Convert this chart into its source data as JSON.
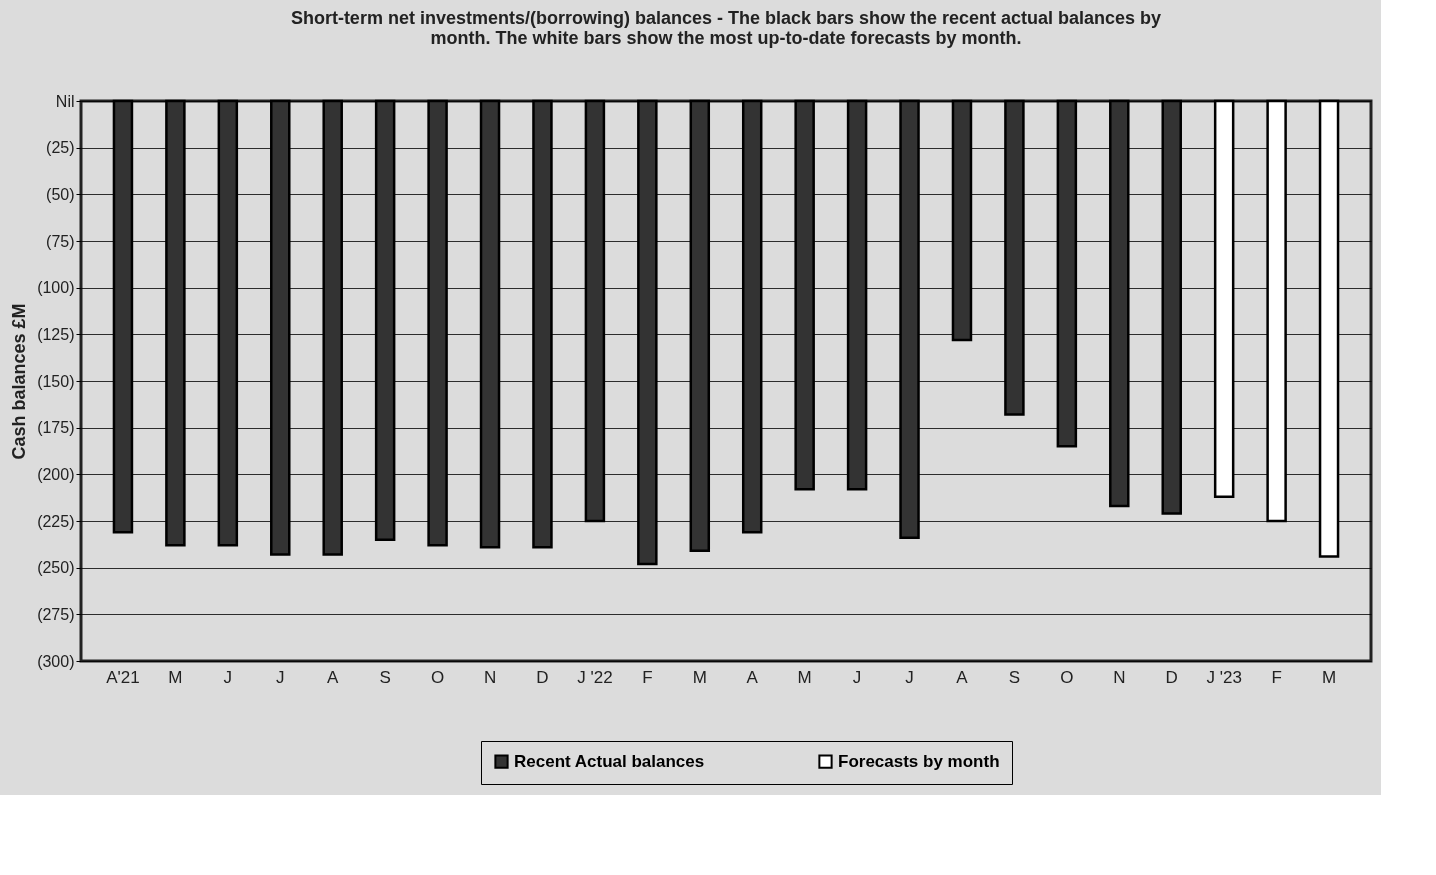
{
  "chart_data": {
    "type": "bar",
    "title": [
      "Short-term net investments/(borrowing) balances - The black bars show the recent actual balances by",
      "month. The white bars show the most up-to-date forecasts by month."
    ],
    "ylabel": "Cash balances £M",
    "categories": [
      "A'21",
      "M",
      "J",
      "J",
      "A",
      "S",
      "O",
      "N",
      "D",
      "J '22",
      "F",
      "M",
      "A",
      "M",
      "J",
      "J",
      "A",
      "S",
      "O",
      "N",
      "D",
      "J '23",
      "F",
      "M"
    ],
    "series": [
      {
        "name": "Recent Actual balances",
        "color": "#333333",
        "values": [
          -231,
          -238,
          -238,
          -243,
          -243,
          -235,
          -238,
          -239,
          -239,
          -225,
          -248,
          -241,
          -231,
          -208,
          -208,
          -234,
          -128,
          -168,
          -185,
          -217,
          -221,
          null,
          null,
          null
        ]
      },
      {
        "name": "Forecasts by month",
        "color": "#ffffff",
        "values": [
          null,
          null,
          null,
          null,
          null,
          null,
          null,
          null,
          null,
          null,
          null,
          null,
          null,
          null,
          null,
          null,
          null,
          null,
          null,
          null,
          null,
          -212,
          -225,
          -244
        ]
      }
    ],
    "ylim": [
      -300,
      0
    ],
    "yticks": [
      {
        "value": 0,
        "label": "Nil"
      },
      {
        "value": -25,
        "label": "(25)"
      },
      {
        "value": -50,
        "label": "(50)"
      },
      {
        "value": -75,
        "label": "(75)"
      },
      {
        "value": -100,
        "label": "(100)"
      },
      {
        "value": -125,
        "label": "(125)"
      },
      {
        "value": -150,
        "label": "(150)"
      },
      {
        "value": -175,
        "label": "(175)"
      },
      {
        "value": -200,
        "label": "(200)"
      },
      {
        "value": -225,
        "label": "(225)"
      },
      {
        "value": -250,
        "label": "(250)"
      },
      {
        "value": -275,
        "label": "(275)"
      },
      {
        "value": -300,
        "label": "(300)"
      }
    ],
    "grid": "y",
    "legend": "bottom"
  }
}
